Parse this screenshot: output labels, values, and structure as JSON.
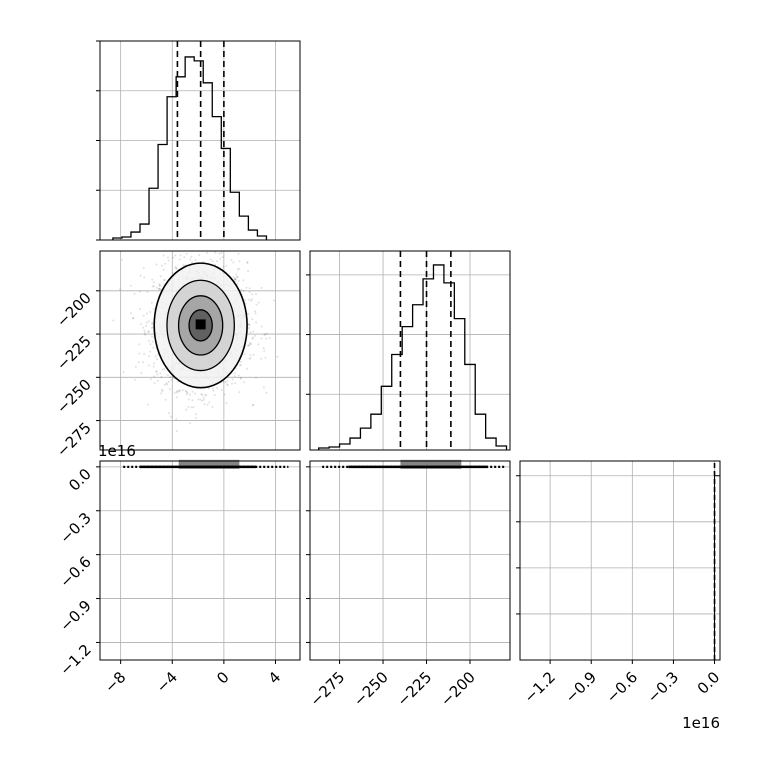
{
  "chart_data": [
    {
      "type": "histogram",
      "panel": "p00",
      "xlim": [
        -9.6,
        5.9
      ],
      "ylim": [
        0,
        1.0
      ],
      "grid": true,
      "bins": [
        -8.6,
        -7.9,
        -7.2,
        -6.5,
        -5.8,
        -5.1,
        -4.4,
        -3.7,
        -3.0,
        -2.3,
        -1.6,
        -0.9,
        -0.2,
        0.5,
        1.2,
        1.9,
        2.6,
        3.3
      ],
      "counts": [
        0.01,
        0.015,
        0.04,
        0.08,
        0.26,
        0.48,
        0.72,
        0.82,
        0.92,
        0.9,
        0.79,
        0.62,
        0.46,
        0.24,
        0.12,
        0.05,
        0.02
      ],
      "quantile_lines": [
        -3.6,
        -1.8,
        0.0
      ],
      "xticks": [],
      "yticks": []
    },
    {
      "type": "scatter_contour",
      "panel": "p10",
      "xlim": [
        -9.6,
        5.9
      ],
      "ylim": [
        -292,
        -177
      ],
      "grid": true,
      "center": [
        -1.8,
        -220
      ],
      "spread": [
        1.8,
        18
      ],
      "points": 2200,
      "yticks": [
        -275,
        -250,
        -225,
        -200
      ],
      "ytick_labels": [
        "−275",
        "−250",
        "−225",
        "−200"
      ]
    },
    {
      "type": "histogram",
      "panel": "p11",
      "xlim": [
        -292,
        -177
      ],
      "ylim": [
        0,
        1.0
      ],
      "grid": true,
      "bins": [
        -287,
        -281,
        -275,
        -269,
        -263,
        -257,
        -251,
        -245,
        -239,
        -233,
        -227,
        -221,
        -215,
        -209,
        -203,
        -197,
        -191,
        -185,
        -179
      ],
      "counts": [
        0.01,
        0.015,
        0.03,
        0.06,
        0.11,
        0.18,
        0.32,
        0.48,
        0.62,
        0.73,
        0.86,
        0.93,
        0.84,
        0.66,
        0.43,
        0.18,
        0.06,
        0.02
      ],
      "quantile_lines": [
        -240,
        -225,
        -211
      ],
      "xticks": [],
      "yticks": []
    },
    {
      "type": "scatter_contour",
      "panel": "p20",
      "xlim": [
        -9.6,
        5.9
      ],
      "ylim_1e16": [
        -1.32,
        0.04
      ],
      "grid": true,
      "band_y_1e16": 0.0,
      "xticks": [
        -8,
        -4,
        0,
        4
      ],
      "xtick_labels": [
        "−8",
        "−4",
        "0",
        "4"
      ],
      "yticks_1e16": [
        0.0,
        -0.3,
        -0.6,
        -0.9,
        -1.2
      ],
      "ytick_labels": [
        "0.0",
        "−0.3",
        "−0.6",
        "−0.9",
        "−1.2"
      ],
      "offset_label": "1e16"
    },
    {
      "type": "scatter_contour",
      "panel": "p21",
      "xlim": [
        -292,
        -177
      ],
      "ylim_1e16": [
        -1.32,
        0.04
      ],
      "grid": true,
      "band_y_1e16": 0.0,
      "xticks": [
        -275,
        -250,
        -225,
        -200
      ],
      "xtick_labels": [
        "−275",
        "−250",
        "−225",
        "−200"
      ]
    },
    {
      "type": "histogram",
      "panel": "p22",
      "xlim_1e16": [
        -1.42,
        0.04
      ],
      "ylim": [
        0,
        1.08
      ],
      "grid": true,
      "spike_x_1e16": 0.0,
      "xticks_1e16": [
        -1.2,
        -0.9,
        -0.6,
        -0.3,
        0.0
      ],
      "xtick_labels": [
        "−1.2",
        "−0.9",
        "−0.6",
        "−0.3",
        "0.0"
      ],
      "offset_label": "1e16"
    }
  ]
}
